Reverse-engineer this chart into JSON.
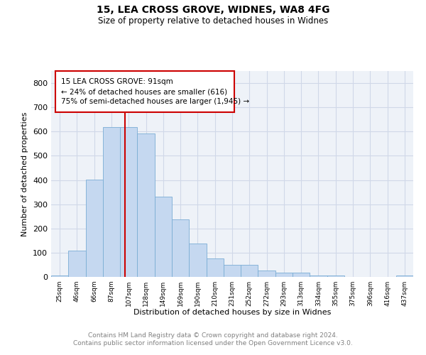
{
  "title1": "15, LEA CROSS GROVE, WIDNES, WA8 4FG",
  "title2": "Size of property relative to detached houses in Widnes",
  "xlabel": "Distribution of detached houses by size in Widnes",
  "ylabel": "Number of detached properties",
  "bar_labels": [
    "25sqm",
    "46sqm",
    "66sqm",
    "87sqm",
    "107sqm",
    "128sqm",
    "149sqm",
    "169sqm",
    "190sqm",
    "210sqm",
    "231sqm",
    "252sqm",
    "272sqm",
    "293sqm",
    "313sqm",
    "334sqm",
    "355sqm",
    "375sqm",
    "396sqm",
    "416sqm",
    "437sqm"
  ],
  "bar_values": [
    7,
    107,
    401,
    617,
    617,
    591,
    330,
    238,
    137,
    76,
    50,
    50,
    25,
    18,
    18,
    7,
    5,
    0,
    0,
    0,
    7
  ],
  "bar_color": "#c5d8f0",
  "bar_edge_color": "#7aadd4",
  "vline_x": 3.8,
  "vline_color": "#cc0000",
  "annotation_text": "15 LEA CROSS GROVE: 91sqm\n← 24% of detached houses are smaller (616)\n75% of semi-detached houses are larger (1,945) →",
  "annotation_box_color": "#cc0000",
  "ylim": [
    0,
    850
  ],
  "yticks": [
    0,
    100,
    200,
    300,
    400,
    500,
    600,
    700,
    800
  ],
  "grid_color": "#d0d8e8",
  "background_color": "#eef2f8",
  "footer": "Contains HM Land Registry data © Crown copyright and database right 2024.\nContains public sector information licensed under the Open Government Licence v3.0."
}
